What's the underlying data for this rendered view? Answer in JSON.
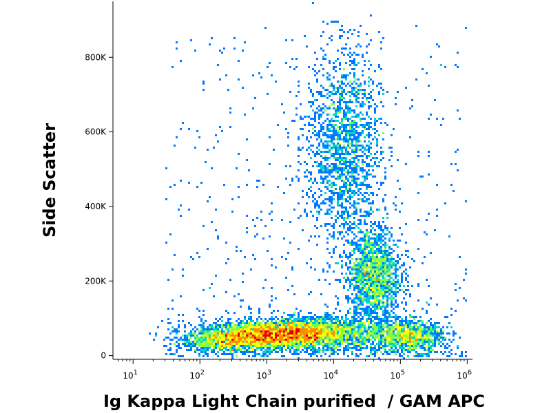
{
  "chart_data": {
    "type": "scatter",
    "subtype": "flow-cytometry-density-dot-plot",
    "xlabel": "Ig Kappa Light Chain purified  / GAM APC",
    "ylabel": "Side Scatter",
    "xscale": "log",
    "xlim": [
      5,
      1200000
    ],
    "ylim": [
      -10000,
      950000
    ],
    "x_ticks": [
      {
        "value": 10,
        "base": "10",
        "exp": "1"
      },
      {
        "value": 100,
        "base": "10",
        "exp": "2"
      },
      {
        "value": 1000,
        "base": "10",
        "exp": "3"
      },
      {
        "value": 10000,
        "base": "10",
        "exp": "4"
      },
      {
        "value": 100000,
        "base": "10",
        "exp": "5"
      },
      {
        "value": 1000000,
        "base": "10",
        "exp": "6"
      }
    ],
    "y_ticks": [
      {
        "value": 0,
        "label": "0"
      },
      {
        "value": 200000,
        "label": "200K"
      },
      {
        "value": 400000,
        "label": "400K"
      },
      {
        "value": 600000,
        "label": "600K"
      },
      {
        "value": 800000,
        "label": "800K"
      }
    ],
    "grid": false,
    "legend": "none",
    "colormap": [
      "#0000c8",
      "#0078ff",
      "#00d2d2",
      "#7aff50",
      "#ffff00",
      "#ff8c00",
      "#e60000"
    ],
    "populations": [
      {
        "x_center": 900,
        "y_center": 55000,
        "x_spread_decades": 0.45,
        "y_spread": 18000,
        "density": "highest"
      },
      {
        "x_center": 4000,
        "y_center": 60000,
        "x_spread_decades": 0.35,
        "y_spread": 20000,
        "density": "high"
      },
      {
        "x_center": 250,
        "y_center": 40000,
        "x_spread_decades": 0.35,
        "y_spread": 15000,
        "density": "medium"
      },
      {
        "x_center": 14000,
        "y_center": 560000,
        "x_spread_decades": 0.28,
        "y_spread": 130000,
        "density": "high"
      },
      {
        "x_center": 40000,
        "y_center": 215000,
        "x_spread_decades": 0.2,
        "y_spread": 65000,
        "density": "high"
      },
      {
        "x_center": 140000,
        "y_center": 50000,
        "x_spread_decades": 0.25,
        "y_spread": 20000,
        "density": "medium"
      },
      {
        "x_center": 30000,
        "y_center": 60000,
        "x_spread_decades": 0.5,
        "y_spread": 25000,
        "density": "medium"
      }
    ]
  }
}
